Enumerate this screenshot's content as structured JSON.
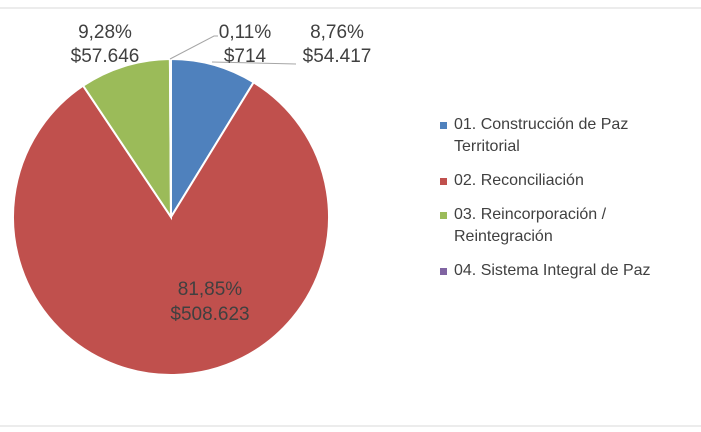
{
  "chart_data": {
    "type": "pie",
    "categories": [
      "01. Construcción de Paz Territorial",
      "02. Reconciliación",
      "03. Reincorporación / Reintegración",
      "04. Sistema Integral de Paz"
    ],
    "values": [
      8.76,
      81.85,
      9.28,
      0.11
    ],
    "value_labels": [
      "8,76%",
      "81,85%",
      "9,28%",
      "0,11%"
    ],
    "amounts": [
      54417,
      508623,
      57646,
      714
    ],
    "amount_labels": [
      "$54.417",
      "$508.623",
      "$57.646",
      "$714"
    ],
    "colors": [
      "#4f81bd",
      "#c0504d",
      "#9bbb59",
      "#8064a2"
    ],
    "legend": "right"
  }
}
